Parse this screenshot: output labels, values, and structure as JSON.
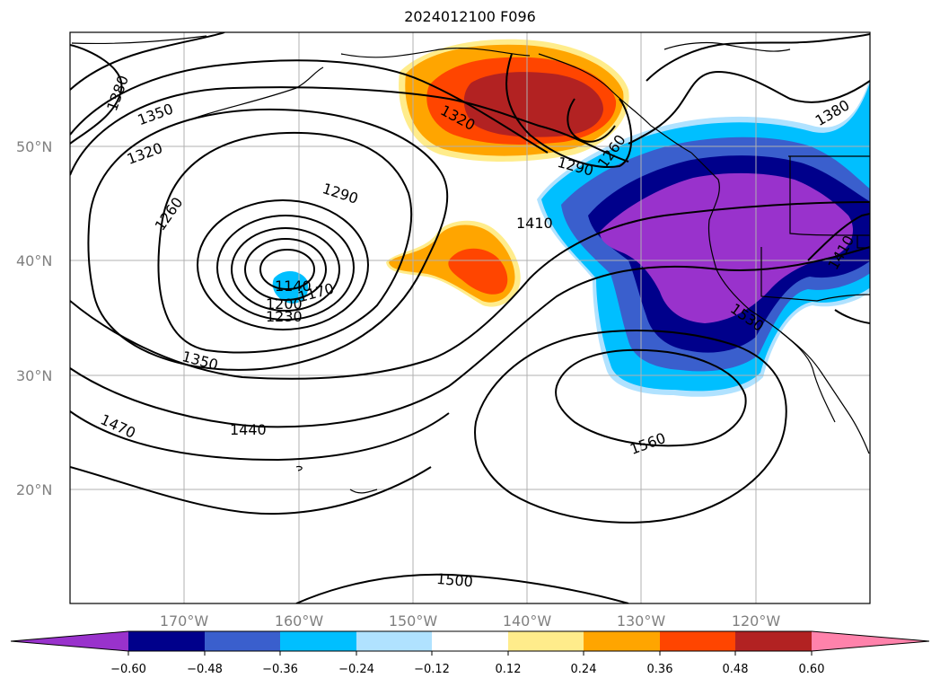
{
  "title": "2024012100 F096",
  "colors": {
    "purple": "#9932CC",
    "navy": "#00008B",
    "royal_blue": "#3A5FCD",
    "deep_sky": "#00BFFF",
    "light_sky": "#B0E2FF",
    "white": "#FFFFFF",
    "light_yellow": "#FFEC8B",
    "orange": "#FFA500",
    "orange_red": "#FF4500",
    "firebrick": "#B22222",
    "pink": "#FF82AB"
  },
  "lat_labels": [
    "50°N",
    "40°N",
    "30°N",
    "20°N"
  ],
  "lon_labels": [
    "170°W",
    "160°W",
    "150°W",
    "140°W",
    "130°W",
    "120°W"
  ],
  "colorbar": {
    "ticks": [
      "−0.60",
      "−0.48",
      "−0.36",
      "−0.24",
      "−0.12",
      "0.12",
      "0.24",
      "0.36",
      "0.48",
      "0.60"
    ]
  },
  "contour_labels": {
    "c1380a": "1380",
    "c1350a": "1350",
    "c1320a": "1320",
    "c1260a": "1260",
    "c1290a": "1290",
    "c1320b": "1320",
    "c1260b": "1260",
    "c1290b": "1290",
    "c1410": "1410",
    "c1140": "1140",
    "c1170": "1170",
    "c1200": "1200",
    "c1230": "1230",
    "c1350b": "1350",
    "c1440": "1440",
    "c1470": "1470",
    "c1560": "1560",
    "c1530": "1530",
    "c1500": "1500",
    "c1380b": "1380",
    "c1410b": "1410"
  }
}
